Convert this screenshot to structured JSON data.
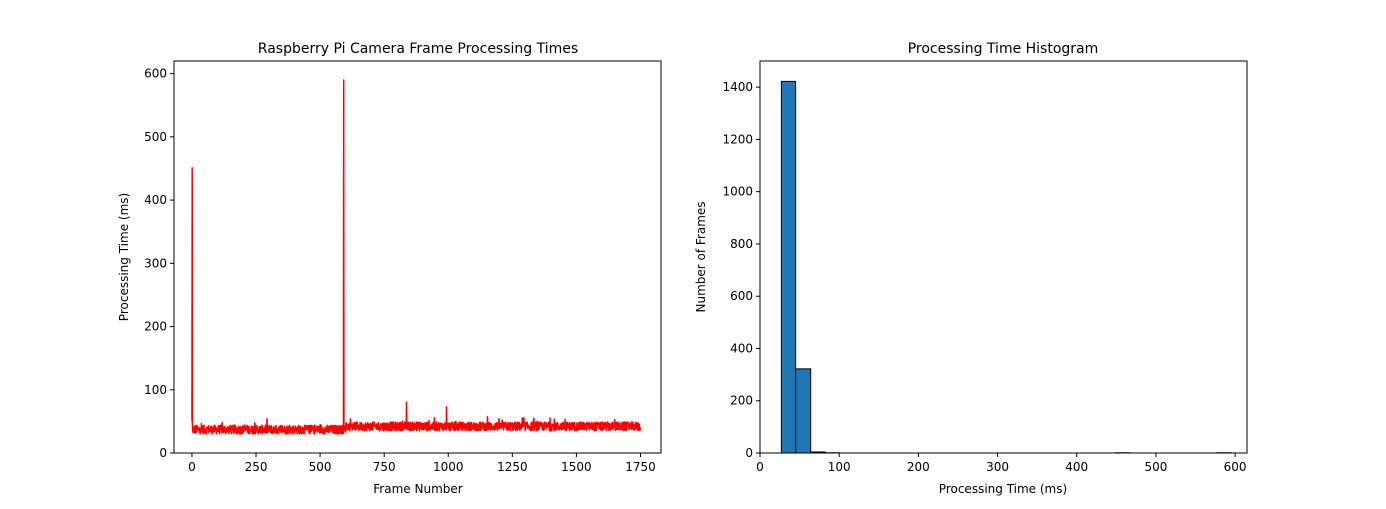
{
  "chart_data": [
    {
      "type": "line",
      "title": "Raspberry Pi Camera Frame Processing Times",
      "xlabel": "Frame Number",
      "ylabel": "Processing Time (ms)",
      "xlim": [
        -70,
        1830
      ],
      "ylim": [
        0,
        620
      ],
      "xticks": [
        0,
        250,
        500,
        750,
        1000,
        1250,
        1500,
        1750
      ],
      "yticks": [
        0,
        100,
        200,
        300,
        400,
        500,
        600
      ],
      "grid": false,
      "legend": "none",
      "series": [
        {
          "color": "#ff0000",
          "frame_count": 1750,
          "baseline_ms": 40,
          "spikes": [
            {
              "frame": 1,
              "value": 451
            },
            {
              "frame": 592,
              "value": 590
            },
            {
              "frame": 837,
              "value": 80
            },
            {
              "frame": 993,
              "value": 73
            }
          ]
        }
      ]
    },
    {
      "type": "bar",
      "subtype": "histogram",
      "title": "Processing Time Histogram",
      "xlabel": "Processing Time (ms)",
      "ylabel": "Number of Frames",
      "xlim": [
        0,
        615
      ],
      "ylim": [
        0,
        1500
      ],
      "xticks": [
        0,
        100,
        200,
        300,
        400,
        500,
        600
      ],
      "yticks": [
        0,
        200,
        400,
        600,
        800,
        1000,
        1200,
        1400
      ],
      "grid": false,
      "legend": "none",
      "bar_color": "#1f77b4",
      "edge_color": "#000000",
      "bins": [
        {
          "x0": 27,
          "x1": 45,
          "count": 1422
        },
        {
          "x0": 45,
          "x1": 64,
          "count": 322
        },
        {
          "x0": 64,
          "x1": 82,
          "count": 4
        },
        {
          "x0": 82,
          "x1": 100,
          "count": 1
        },
        {
          "x0": 100,
          "x1": 119,
          "count": 0
        },
        {
          "x0": 119,
          "x1": 137,
          "count": 0
        },
        {
          "x0": 137,
          "x1": 155,
          "count": 0
        },
        {
          "x0": 155,
          "x1": 174,
          "count": 0
        },
        {
          "x0": 174,
          "x1": 192,
          "count": 0
        },
        {
          "x0": 192,
          "x1": 210,
          "count": 0
        },
        {
          "x0": 210,
          "x1": 229,
          "count": 0
        },
        {
          "x0": 229,
          "x1": 247,
          "count": 0
        },
        {
          "x0": 247,
          "x1": 265,
          "count": 0
        },
        {
          "x0": 265,
          "x1": 284,
          "count": 0
        },
        {
          "x0": 284,
          "x1": 302,
          "count": 0
        },
        {
          "x0": 302,
          "x1": 320,
          "count": 0
        },
        {
          "x0": 320,
          "x1": 339,
          "count": 0
        },
        {
          "x0": 339,
          "x1": 357,
          "count": 0
        },
        {
          "x0": 357,
          "x1": 375,
          "count": 0
        },
        {
          "x0": 375,
          "x1": 394,
          "count": 0
        },
        {
          "x0": 394,
          "x1": 412,
          "count": 0
        },
        {
          "x0": 412,
          "x1": 430,
          "count": 0
        },
        {
          "x0": 430,
          "x1": 449,
          "count": 0
        },
        {
          "x0": 449,
          "x1": 467,
          "count": 1
        },
        {
          "x0": 467,
          "x1": 485,
          "count": 0
        },
        {
          "x0": 485,
          "x1": 504,
          "count": 0
        },
        {
          "x0": 504,
          "x1": 522,
          "count": 0
        },
        {
          "x0": 522,
          "x1": 540,
          "count": 0
        },
        {
          "x0": 540,
          "x1": 559,
          "count": 0
        },
        {
          "x0": 559,
          "x1": 577,
          "count": 0
        },
        {
          "x0": 577,
          "x1": 595,
          "count": 1
        }
      ]
    }
  ]
}
